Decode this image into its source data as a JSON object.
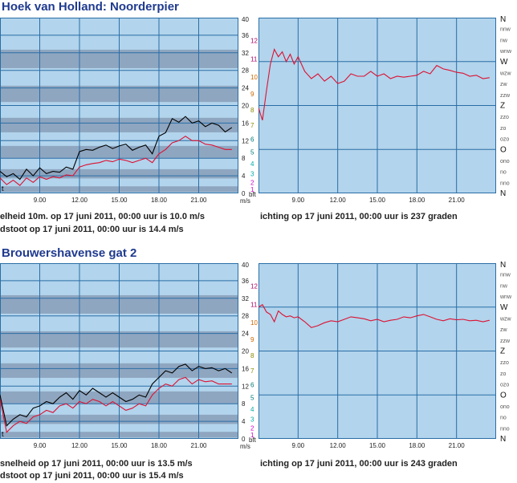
{
  "stations": [
    {
      "name": "Hoek van Holland: Noorderpier",
      "speed_caption": "elheid 10m. op 17 juni 2011, 00:00 uur is 10.0 m/s",
      "gust_caption": "dstoot op 17 juni 2011, 00:00 uur is 14.4 m/s",
      "direction_caption": "ichting op 17 juni 2011, 00:00 uur is 237 graden"
    },
    {
      "name": "Brouwershavense gat 2",
      "speed_caption": "snelheid op 17 juni 2011, 00:00 uur is 13.5 m/s",
      "gust_caption": "dstoot op 17 juni 2011, 00:00 uur is 15.4 m/s",
      "direction_caption": "ichting op 17 juni 2011, 00:00 uur is 243 graden"
    }
  ],
  "chart_data": [
    {
      "type": "line",
      "title": "Hoek van Holland: Noorderpier",
      "panel": "wind speed",
      "x_tick_labels": [
        "9.00",
        "12.00",
        "15.00",
        "18.00",
        "21.00"
      ],
      "x_tick_hours": [
        9,
        12,
        15,
        18,
        21
      ],
      "xlim_hours": [
        6,
        24
      ],
      "y_ms_ticks": [
        "0",
        "4",
        "8",
        "12",
        "16",
        "20",
        "24",
        "28",
        "32",
        "36",
        "40"
      ],
      "y_bft_ticks": [
        "1",
        "2",
        "3",
        "4",
        "5",
        "6",
        "7",
        "8",
        "9",
        "10",
        "11",
        "12"
      ],
      "y_bft_thresholds_ms": [
        0.3,
        1.6,
        3.4,
        5.5,
        8.0,
        10.8,
        13.9,
        17.2,
        20.8,
        24.5,
        28.5,
        32.7
      ],
      "y_unit_ms": "m/s",
      "y_unit_bft": "bft",
      "corner_label": "t",
      "ylim": [
        0,
        40
      ],
      "series": [
        {
          "color": "#000000",
          "x": [
            6.0,
            6.5,
            7.0,
            7.5,
            8.0,
            8.5,
            9.0,
            9.5,
            10.0,
            10.5,
            11.0,
            11.5,
            12.0,
            12.5,
            13.0,
            13.5,
            14.0,
            14.5,
            15.0,
            15.5,
            16.0,
            16.5,
            17.0,
            17.5,
            18.0,
            18.5,
            19.0,
            19.5,
            20.0,
            20.5,
            21.0,
            21.5,
            22.0,
            22.5,
            23.0,
            23.5
          ],
          "y": [
            5.0,
            3.8,
            4.5,
            3.2,
            5.5,
            4.0,
            5.8,
            4.5,
            5.0,
            4.8,
            6.0,
            5.5,
            9.5,
            10.0,
            9.8,
            10.5,
            11.0,
            10.2,
            10.8,
            11.2,
            9.8,
            10.5,
            11.0,
            9.0,
            13.0,
            13.8,
            17.0,
            16.2,
            17.5,
            16.0,
            16.5,
            15.2,
            16.0,
            15.5,
            14.0,
            15.0
          ]
        },
        {
          "color": "#dd1133",
          "x": [
            6.0,
            6.5,
            7.0,
            7.5,
            8.0,
            8.5,
            9.0,
            9.5,
            10.0,
            10.5,
            11.0,
            11.5,
            12.0,
            12.5,
            13.0,
            13.5,
            14.0,
            14.5,
            15.0,
            15.5,
            16.0,
            16.5,
            17.0,
            17.5,
            18.0,
            18.5,
            19.0,
            19.5,
            20.0,
            20.5,
            21.0,
            21.5,
            22.0,
            22.5,
            23.0,
            23.5
          ],
          "y": [
            3.5,
            2.0,
            3.0,
            1.8,
            3.5,
            2.5,
            3.8,
            3.2,
            3.8,
            3.5,
            4.2,
            4.0,
            6.0,
            6.5,
            6.8,
            7.0,
            7.5,
            7.2,
            7.8,
            7.5,
            7.0,
            7.5,
            8.0,
            7.0,
            9.0,
            10.0,
            11.5,
            12.0,
            13.0,
            12.0,
            12.0,
            11.2,
            11.0,
            10.5,
            10.0,
            10.0
          ]
        }
      ]
    },
    {
      "type": "line",
      "title": "Hoek van Holland: Noorderpier",
      "panel": "wind direction",
      "x_tick_labels": [
        "9.00",
        "12.00",
        "15.00",
        "18.00",
        "21.00"
      ],
      "x_tick_hours": [
        9,
        12,
        15,
        18,
        21
      ],
      "xlim_hours": [
        6,
        24
      ],
      "y_tick_labels": [
        "N",
        "nno",
        "no",
        "ono",
        "O",
        "ozo",
        "zo",
        "zzo",
        "Z",
        "zzw",
        "zw",
        "wzw",
        "W",
        "wnw",
        "nw",
        "nnw",
        "N"
      ],
      "ylim_degrees": [
        0,
        360
      ],
      "series": [
        {
          "color": "#dd1133",
          "x": [
            6.0,
            6.3,
            6.6,
            6.9,
            7.2,
            7.5,
            7.8,
            8.1,
            8.4,
            8.7,
            9.0,
            9.5,
            10.0,
            10.5,
            11.0,
            11.5,
            12.0,
            12.5,
            13.0,
            13.5,
            14.0,
            14.5,
            15.0,
            15.5,
            16.0,
            16.5,
            17.0,
            17.5,
            18.0,
            18.5,
            19.0,
            19.5,
            20.0,
            20.5,
            21.0,
            21.5,
            22.0,
            22.5,
            23.0,
            23.5
          ],
          "y": [
            175,
            150,
            210,
            265,
            295,
            280,
            290,
            270,
            285,
            265,
            280,
            250,
            235,
            245,
            230,
            240,
            225,
            230,
            245,
            240,
            240,
            250,
            240,
            245,
            235,
            240,
            238,
            240,
            242,
            250,
            245,
            262,
            255,
            252,
            248,
            246,
            240,
            242,
            235,
            237
          ]
        }
      ]
    },
    {
      "type": "line",
      "title": "Brouwershavense gat 2",
      "panel": "wind speed",
      "x_tick_labels": [
        "9.00",
        "12.00",
        "15.00",
        "18.00",
        "21.00"
      ],
      "x_tick_hours": [
        9,
        12,
        15,
        18,
        21
      ],
      "xlim_hours": [
        6,
        24
      ],
      "y_ms_ticks": [
        "0",
        "4",
        "8",
        "12",
        "16",
        "20",
        "24",
        "28",
        "32",
        "36",
        "40"
      ],
      "y_bft_ticks": [
        "1",
        "2",
        "3",
        "4",
        "5",
        "6",
        "7",
        "8",
        "9",
        "10",
        "11",
        "12"
      ],
      "y_bft_thresholds_ms": [
        0.3,
        1.6,
        3.4,
        5.5,
        8.0,
        10.8,
        13.9,
        17.2,
        20.8,
        24.5,
        28.5,
        32.7
      ],
      "y_unit_ms": "m/s",
      "y_unit_bft": "bft",
      "corner_label": "t",
      "ylim": [
        0,
        40
      ],
      "series": [
        {
          "color": "#000000",
          "x": [
            6.0,
            6.5,
            7.0,
            7.5,
            8.0,
            8.5,
            9.0,
            9.5,
            10.0,
            10.5,
            11.0,
            11.5,
            12.0,
            12.5,
            13.0,
            13.5,
            14.0,
            14.5,
            15.0,
            15.5,
            16.0,
            16.5,
            17.0,
            17.5,
            18.0,
            18.5,
            19.0,
            19.5,
            20.0,
            20.5,
            21.0,
            21.5,
            22.0,
            22.5,
            23.0,
            23.5
          ],
          "y": [
            10.0,
            3.0,
            4.5,
            5.5,
            5.0,
            7.0,
            7.5,
            8.5,
            8.0,
            9.5,
            10.5,
            9.0,
            11.0,
            10.0,
            11.5,
            10.5,
            9.5,
            10.5,
            9.5,
            8.5,
            9.0,
            10.0,
            9.5,
            12.5,
            14.0,
            15.5,
            15.0,
            16.5,
            17.0,
            15.5,
            16.5,
            16.0,
            16.2,
            15.5,
            16.0,
            15.0
          ]
        },
        {
          "color": "#dd1133",
          "x": [
            6.0,
            6.5,
            7.0,
            7.5,
            8.0,
            8.5,
            9.0,
            9.5,
            10.0,
            10.5,
            11.0,
            11.5,
            12.0,
            12.5,
            13.0,
            13.5,
            14.0,
            14.5,
            15.0,
            15.5,
            16.0,
            16.5,
            17.0,
            17.5,
            18.0,
            18.5,
            19.0,
            19.5,
            20.0,
            20.5,
            21.0,
            21.5,
            22.0,
            22.5,
            23.0,
            23.5
          ],
          "y": [
            9.0,
            1.5,
            3.0,
            4.0,
            3.5,
            5.0,
            5.5,
            6.5,
            6.0,
            7.5,
            8.0,
            7.0,
            8.5,
            8.0,
            9.0,
            8.5,
            7.5,
            8.5,
            7.5,
            6.5,
            7.0,
            8.0,
            7.5,
            10.0,
            11.5,
            12.5,
            12.0,
            13.5,
            14.0,
            12.5,
            13.5,
            13.0,
            13.2,
            12.5,
            12.5,
            12.5
          ]
        }
      ]
    },
    {
      "type": "line",
      "title": "Brouwershavense gat 2",
      "panel": "wind direction",
      "x_tick_labels": [
        "9.00",
        "12.00",
        "15.00",
        "18.00",
        "21.00"
      ],
      "x_tick_hours": [
        9,
        12,
        15,
        18,
        21
      ],
      "xlim_hours": [
        6,
        24
      ],
      "y_tick_labels": [
        "N",
        "nno",
        "no",
        "ono",
        "O",
        "ozo",
        "zo",
        "zzo",
        "Z",
        "zzw",
        "zw",
        "wzw",
        "W",
        "wnw",
        "nw",
        "nnw",
        "N"
      ],
      "ylim_degrees": [
        0,
        360
      ],
      "series": [
        {
          "color": "#dd1133",
          "x": [
            6.0,
            6.3,
            6.6,
            6.9,
            7.2,
            7.5,
            7.8,
            8.1,
            8.4,
            8.7,
            9.0,
            9.5,
            10.0,
            10.5,
            11.0,
            11.5,
            12.0,
            12.5,
            13.0,
            13.5,
            14.0,
            14.5,
            15.0,
            15.5,
            16.0,
            16.5,
            17.0,
            17.5,
            18.0,
            18.5,
            19.0,
            19.5,
            20.0,
            20.5,
            21.0,
            21.5,
            22.0,
            22.5,
            23.0,
            23.5
          ],
          "y": [
            270,
            275,
            260,
            255,
            240,
            262,
            255,
            250,
            252,
            248,
            250,
            240,
            228,
            232,
            238,
            242,
            240,
            245,
            250,
            248,
            246,
            242,
            245,
            240,
            243,
            245,
            250,
            248,
            252,
            255,
            250,
            245,
            242,
            246,
            244,
            245,
            242,
            243,
            240,
            243
          ]
        }
      ]
    }
  ]
}
